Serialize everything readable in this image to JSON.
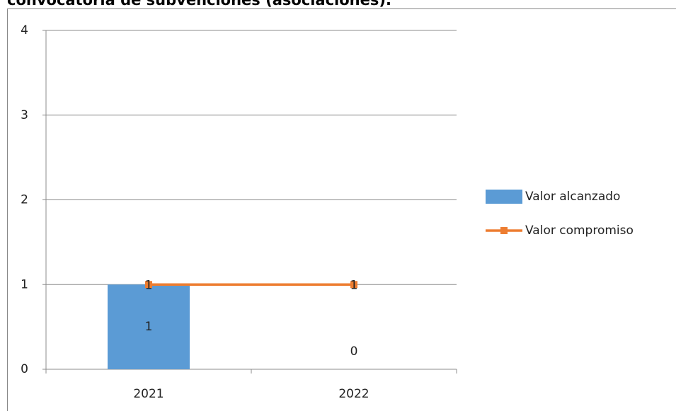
{
  "chart_data": {
    "type": "bar",
    "title": "convocatoria de subvenciones (asociaciones).",
    "categories": [
      "2021",
      "2022"
    ],
    "series": [
      {
        "name": "Valor alcanzado",
        "type": "bar",
        "color": "#5b9bd5",
        "values": [
          1,
          0
        ]
      },
      {
        "name": "Valor compromiso",
        "type": "line",
        "color": "#ed7d31",
        "values": [
          1,
          1
        ]
      }
    ],
    "ylim": [
      0,
      4
    ],
    "yticks": [
      0,
      1,
      2,
      3,
      4
    ],
    "grid": true,
    "legend": "right"
  }
}
